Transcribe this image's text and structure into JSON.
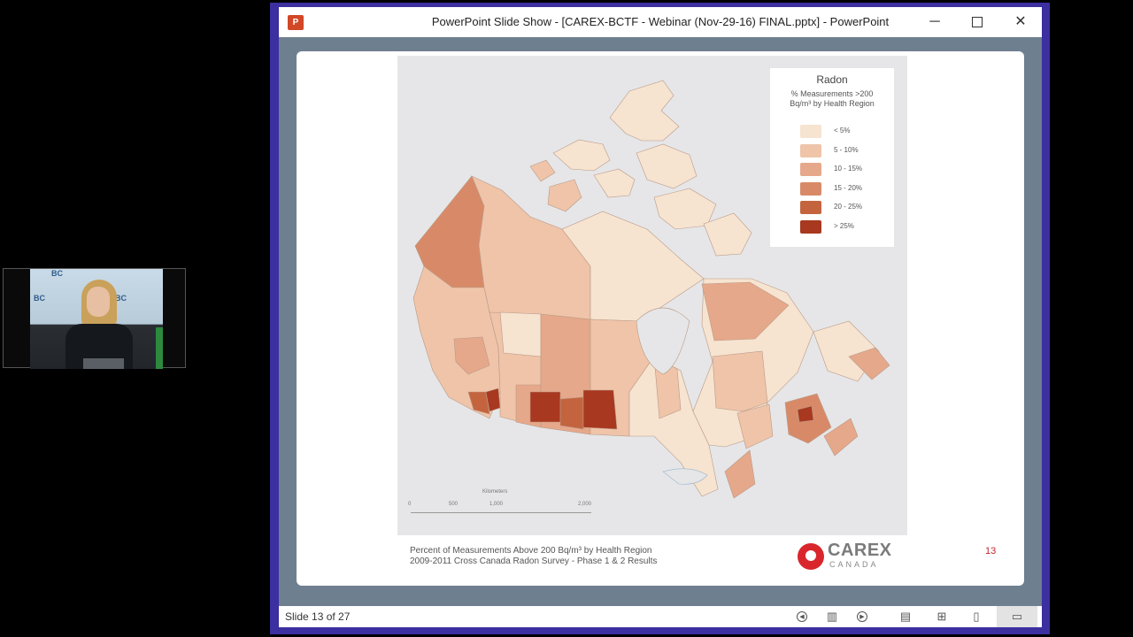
{
  "window": {
    "title": "PowerPoint Slide Show - [CAREX-BCTF - Webinar (Nov-29-16) FINAL.pptx] - PowerPoint",
    "app_icon": "P",
    "controls": {
      "minimize": "─",
      "close": "✕"
    }
  },
  "webcam": {
    "label_a": "BC",
    "label_b": "BC"
  },
  "slide": {
    "legend": {
      "title": "Radon",
      "subtitle": "% Measurements >200 Bq/m³ by Health Region",
      "items": [
        {
          "label": "< 5%",
          "color": "#f6e3d0"
        },
        {
          "label": "5 - 10%",
          "color": "#efc4a9"
        },
        {
          "label": "10 - 15%",
          "color": "#e6a88a"
        },
        {
          "label": "15 - 20%",
          "color": "#d88a68"
        },
        {
          "label": "20 - 25%",
          "color": "#c4643f"
        },
        {
          "label": "> 25%",
          "color": "#a8381f"
        }
      ]
    },
    "scale": {
      "caption": "Kilometers",
      "ticks": [
        "0",
        "500",
        "1,000",
        "2,000"
      ]
    },
    "caption_line1": "Percent of Measurements Above 200 Bq/m³ by Health Region",
    "caption_line2": "2009-2011 Cross Canada Radon Survey - Phase 1 & 2 Results",
    "logo": {
      "name": "CAREX",
      "sub": "CANADA"
    },
    "page_number": "13"
  },
  "statusbar": {
    "slide_counter": "Slide 13 of 27",
    "icons": [
      "previous-icon",
      "menu-icon",
      "next-icon",
      "normal-view-icon",
      "slide-sorter-icon",
      "reading-view-icon",
      "slide-show-icon"
    ]
  }
}
